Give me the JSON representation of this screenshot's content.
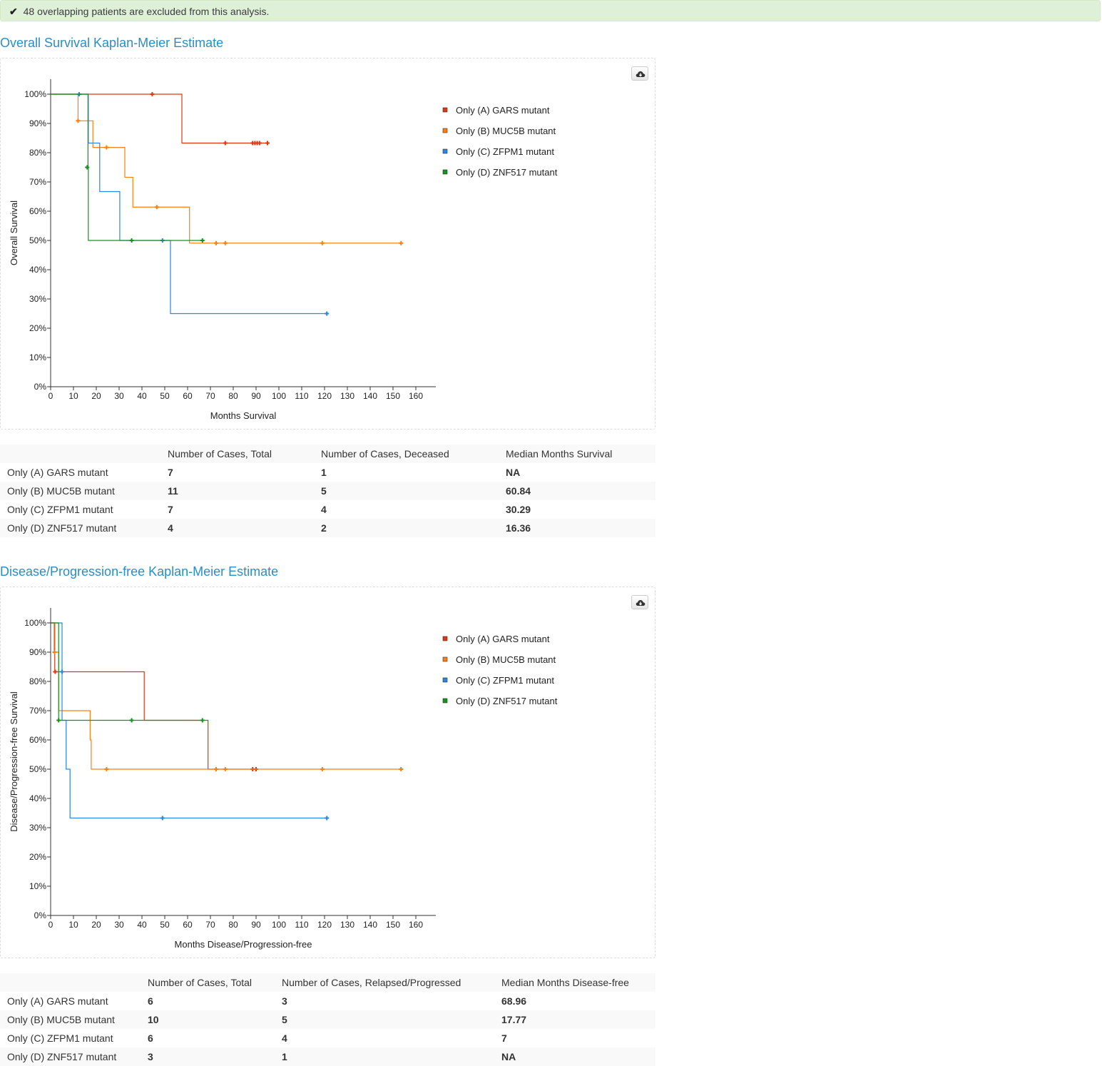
{
  "alert": {
    "text": "48 overlapping patients are excluded from this analysis."
  },
  "os": {
    "title": "Overall Survival Kaplan-Meier Estimate",
    "table": {
      "headers": [
        "",
        "Number of Cases, Total",
        "Number of Cases, Deceased",
        "Median Months Survival"
      ],
      "rows": [
        [
          "Only (A) GARS mutant",
          "7",
          "1",
          "NA"
        ],
        [
          "Only (B) MUC5B mutant",
          "11",
          "5",
          "60.84"
        ],
        [
          "Only (C) ZFPM1 mutant",
          "7",
          "4",
          "30.29"
        ],
        [
          "Only (D) ZNF517 mutant",
          "4",
          "2",
          "16.36"
        ]
      ]
    }
  },
  "dfs": {
    "title": "Disease/Progression-free Kaplan-Meier Estimate",
    "table": {
      "headers": [
        "",
        "Number of Cases, Total",
        "Number of Cases, Relapsed/Progressed",
        "Median Months Disease-free"
      ],
      "rows": [
        [
          "Only (A) GARS mutant",
          "6",
          "3",
          "68.96"
        ],
        [
          "Only (B) MUC5B mutant",
          "10",
          "5",
          "17.77"
        ],
        [
          "Only (C) ZFPM1 mutant",
          "6",
          "4",
          "7"
        ],
        [
          "Only (D) ZNF517 mutant",
          "3",
          "1",
          "NA"
        ]
      ]
    }
  },
  "icons": {
    "alert": "check-icon",
    "download": "cloud-download-icon"
  },
  "colors": {
    "A": "#dc3912",
    "B": "#ff7f0e",
    "C": "#2986e2",
    "D": "#109618",
    "title": "#2a8dc8"
  },
  "chart_data": [
    {
      "type": "line",
      "title": "Overall Survival Kaplan-Meier Estimate",
      "xlabel": "Months Survival",
      "ylabel": "Overall Survival",
      "xlim": [
        0,
        168
      ],
      "ylim": [
        0,
        100
      ],
      "xticks": [
        "0",
        "10",
        "20",
        "30",
        "40",
        "50",
        "60",
        "70",
        "80",
        "90",
        "100",
        "110",
        "120",
        "130",
        "140",
        "150",
        "160"
      ],
      "yticks": [
        "0%",
        "10%",
        "20%",
        "30%",
        "40%",
        "50%",
        "60%",
        "70%",
        "80%",
        "90%",
        "100%"
      ],
      "legend": "right",
      "series": [
        {
          "name": "Only (A) GARS mutant",
          "color": "#dc3912",
          "steps": [
            [
              0,
              100
            ],
            [
              57.5,
              83.3
            ],
            [
              95,
              83.3
            ]
          ],
          "censored": [
            [
              44.5,
              100
            ],
            [
              76.5,
              83.3
            ],
            [
              88.5,
              83.3
            ],
            [
              89.5,
              83.3
            ],
            [
              90.5,
              83.3
            ],
            [
              91.5,
              83.3
            ],
            [
              95,
              83.3
            ]
          ]
        },
        {
          "name": "Only (B) MUC5B mutant",
          "color": "#ff7f0e",
          "steps": [
            [
              0,
              100
            ],
            [
              12,
              90.9
            ],
            [
              18.5,
              81.8
            ],
            [
              32.5,
              71.6
            ],
            [
              36,
              61.4
            ],
            [
              60.84,
              49.1
            ],
            [
              153.5,
              49.1
            ]
          ],
          "censored": [
            [
              12,
              90.9
            ],
            [
              24.5,
              81.8
            ],
            [
              46.5,
              61.4
            ],
            [
              72.5,
              49.1
            ],
            [
              76.5,
              49.1
            ],
            [
              119,
              49.1
            ],
            [
              153.5,
              49.1
            ]
          ]
        },
        {
          "name": "Only (C) ZFPM1 mutant",
          "color": "#2986e2",
          "steps": [
            [
              0,
              100
            ],
            [
              16.5,
              83.3
            ],
            [
              21.5,
              66.7
            ],
            [
              30.29,
              50
            ],
            [
              52.5,
              25
            ],
            [
              121,
              25
            ]
          ],
          "censored": [
            [
              12.5,
              100
            ],
            [
              49,
              50
            ],
            [
              121,
              25
            ]
          ]
        },
        {
          "name": "Only (D) ZNF517 mutant",
          "color": "#109618",
          "steps": [
            [
              0,
              100
            ],
            [
              16.36,
              75
            ],
            [
              16.5,
              50
            ],
            [
              66.5,
              50
            ]
          ],
          "censored": [
            [
              16,
              75
            ],
            [
              35.5,
              50
            ],
            [
              66.5,
              50
            ]
          ]
        }
      ]
    },
    {
      "type": "line",
      "title": "Disease/Progression-free Kaplan-Meier Estimate",
      "xlabel": "Months Disease/Progression-free",
      "ylabel": "Disease/Progression-free Survival",
      "xlim": [
        0,
        168
      ],
      "ylim": [
        0,
        100
      ],
      "xticks": [
        "0",
        "10",
        "20",
        "30",
        "40",
        "50",
        "60",
        "70",
        "80",
        "90",
        "100",
        "110",
        "120",
        "130",
        "140",
        "150",
        "160"
      ],
      "yticks": [
        "0%",
        "10%",
        "20%",
        "30%",
        "40%",
        "50%",
        "60%",
        "70%",
        "80%",
        "90%",
        "100%"
      ],
      "legend": "right",
      "series": [
        {
          "name": "Only (A) GARS mutant",
          "color": "#dc3912",
          "steps": [
            [
              0,
              100
            ],
            [
              1.8,
              83.3
            ],
            [
              41,
              66.7
            ],
            [
              68.96,
              50
            ],
            [
              90,
              50
            ]
          ],
          "censored": [
            [
              2,
              83.3
            ],
            [
              88.5,
              50
            ],
            [
              90,
              50
            ]
          ]
        },
        {
          "name": "Only (B) MUC5B mutant",
          "color": "#ff7f0e",
          "steps": [
            [
              0,
              100
            ],
            [
              1.5,
              90
            ],
            [
              3.5,
              70
            ],
            [
              17.3,
              60
            ],
            [
              17.77,
              50
            ],
            [
              153.5,
              50
            ]
          ],
          "censored": [
            [
              1.7,
              90
            ],
            [
              24.5,
              50
            ],
            [
              72.5,
              50
            ],
            [
              76.5,
              50
            ],
            [
              119,
              50
            ],
            [
              153.5,
              50
            ]
          ]
        },
        {
          "name": "Only (C) ZFPM1 mutant",
          "color": "#2986e2",
          "steps": [
            [
              0,
              100
            ],
            [
              5,
              66.7
            ],
            [
              6.8,
              50
            ],
            [
              8.5,
              33.3
            ],
            [
              121,
              33.3
            ]
          ],
          "censored": [
            [
              5,
              83.3
            ],
            [
              49,
              33.3
            ],
            [
              121,
              33.3
            ]
          ]
        },
        {
          "name": "Only (D) ZNF517 mutant",
          "color": "#109618",
          "steps": [
            [
              0,
              100
            ],
            [
              3.5,
              66.7
            ],
            [
              66.5,
              66.7
            ]
          ],
          "censored": [
            [
              3.5,
              66.7
            ],
            [
              35.5,
              66.7
            ],
            [
              66.5,
              66.7
            ]
          ]
        }
      ]
    }
  ]
}
